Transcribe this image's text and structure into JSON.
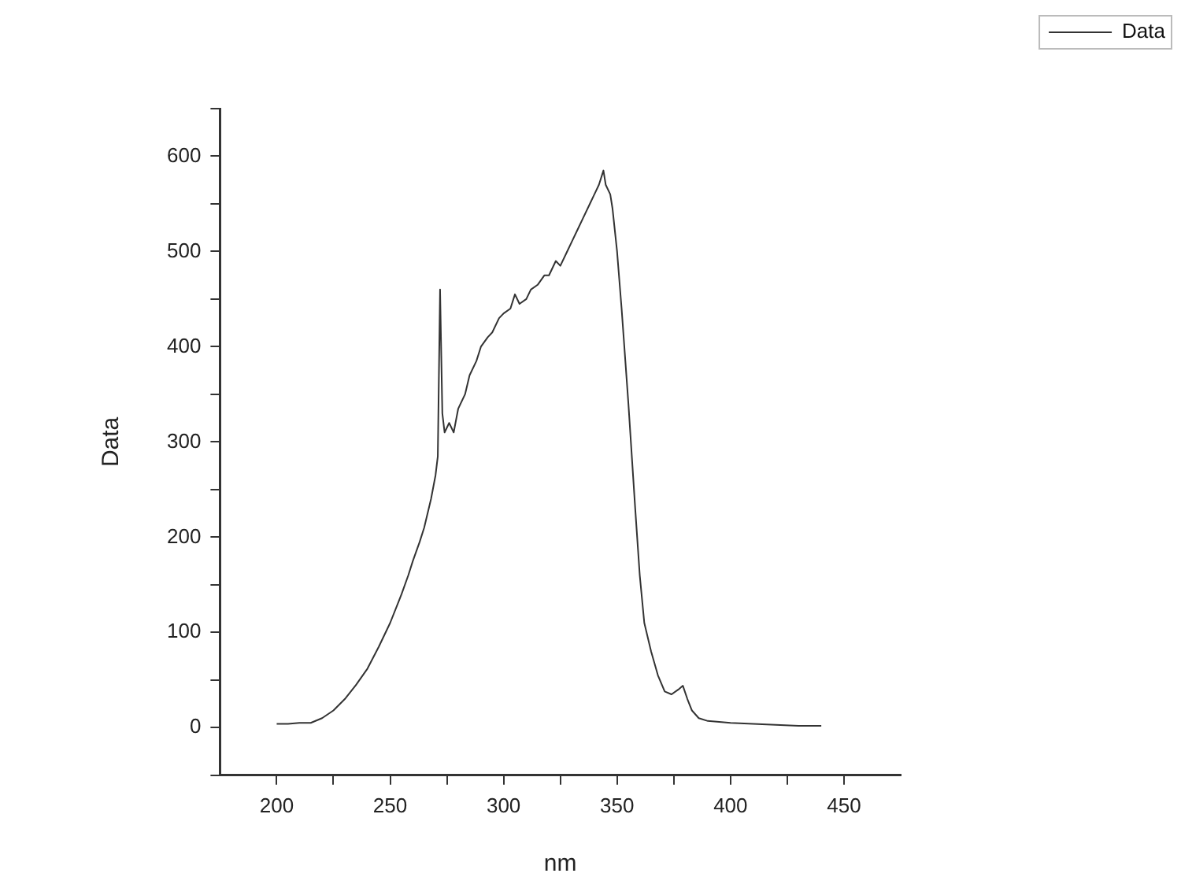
{
  "chart_data": {
    "type": "line",
    "xlabel": "nm",
    "ylabel": "Data",
    "xlim": [
      175,
      475
    ],
    "xticks": [
      200,
      {
        "value": 225,
        "label": null
      },
      250,
      {
        "value": 275,
        "label": null
      },
      300,
      {
        "value": 325,
        "label": null
      },
      350,
      {
        "value": 375,
        "label": null
      },
      400,
      {
        "value": 425,
        "label": null
      },
      450
    ],
    "ylim": [
      -50,
      650
    ],
    "yticks": [
      {
        "value": -50,
        "label": null
      },
      0,
      {
        "value": 50,
        "label": null
      },
      100,
      {
        "value": 150,
        "label": null
      },
      200,
      {
        "value": 250,
        "label": null
      },
      300,
      {
        "value": 350,
        "label": null
      },
      400,
      {
        "value": 450,
        "label": null
      },
      500,
      {
        "value": 550,
        "label": null
      },
      600,
      {
        "value": 650,
        "label": null
      }
    ],
    "grid": false,
    "legend": "top right",
    "marker": "none",
    "line_style": "solid",
    "series": [
      {
        "name": "Data",
        "color": "#333333",
        "x": [
          200,
          205,
          210,
          215,
          220,
          225,
          230,
          235,
          240,
          245,
          250,
          255,
          258,
          260,
          263,
          265,
          268,
          270,
          271,
          272,
          273,
          274,
          276,
          278,
          280,
          283,
          285,
          288,
          290,
          293,
          295,
          298,
          300,
          303,
          305,
          307,
          310,
          312,
          315,
          318,
          320,
          323,
          325,
          328,
          330,
          333,
          335,
          338,
          340,
          342,
          344,
          345,
          347,
          348,
          350,
          352,
          355,
          358,
          360,
          362,
          365,
          368,
          371,
          374,
          377,
          379,
          381,
          383,
          386,
          390,
          400,
          410,
          420,
          430,
          440
        ],
        "values": [
          4,
          4,
          5,
          5,
          10,
          18,
          30,
          45,
          62,
          85,
          110,
          140,
          160,
          175,
          195,
          210,
          240,
          265,
          285,
          460,
          330,
          310,
          320,
          310,
          335,
          350,
          370,
          385,
          400,
          410,
          415,
          430,
          435,
          440,
          455,
          445,
          450,
          460,
          465,
          475,
          475,
          490,
          485,
          500,
          510,
          525,
          535,
          550,
          560,
          570,
          585,
          570,
          560,
          545,
          500,
          440,
          340,
          230,
          160,
          110,
          80,
          55,
          38,
          35,
          40,
          44,
          30,
          18,
          10,
          7,
          5,
          4,
          3,
          2,
          2
        ]
      }
    ]
  }
}
